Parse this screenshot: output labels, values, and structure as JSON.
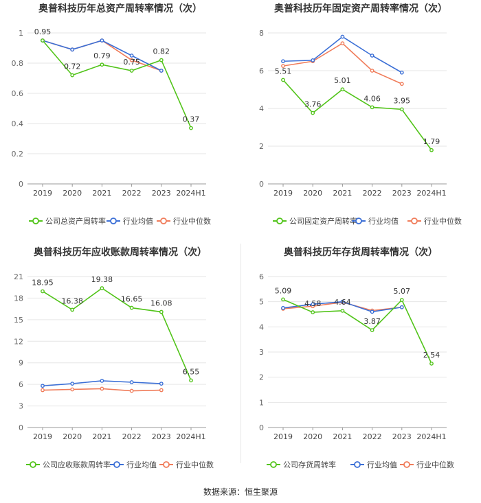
{
  "source": "数据来源：恒生聚源",
  "legend_common": {
    "avg": "行业均值",
    "median": "行业中位数"
  },
  "colors": {
    "company": "#52c41a",
    "avg": "#3b6fd6",
    "median": "#f07c5a",
    "grid": "#e6e6e6",
    "axis": "#999999",
    "text": "#333333"
  },
  "chart_data": [
    {
      "type": "line",
      "title": "奥普科技历年总资产周转率情况（次）",
      "categories": [
        "2019",
        "2020",
        "2021",
        "2022",
        "2023",
        "2024H1"
      ],
      "yticks": [
        "0",
        "0.2",
        "0.4",
        "0.6",
        "0.8",
        "1"
      ],
      "ylim": [
        0,
        1
      ],
      "series": [
        {
          "name": "公司总资产周转率",
          "key": "company",
          "values": [
            0.95,
            0.72,
            0.79,
            0.75,
            0.82,
            0.37
          ],
          "labels": [
            "0.95",
            "0.72",
            "0.79",
            "0.75",
            "0.82",
            "0.37"
          ]
        },
        {
          "name": "行业均值",
          "key": "avg",
          "values": [
            0.95,
            0.89,
            0.95,
            0.85,
            0.75,
            null
          ]
        },
        {
          "name": "行业中位数",
          "key": "median",
          "values": [
            0.95,
            0.89,
            0.95,
            0.82,
            0.75,
            null
          ]
        }
      ]
    },
    {
      "type": "line",
      "title": "奥普科技历年固定资产周转率情况（次）",
      "categories": [
        "2019",
        "2020",
        "2021",
        "2022",
        "2023",
        "2024H1"
      ],
      "yticks": [
        "0",
        "2",
        "4",
        "6",
        "8"
      ],
      "ylim": [
        0,
        8
      ],
      "series": [
        {
          "name": "公司固定资产周转率",
          "key": "company",
          "values": [
            5.51,
            3.76,
            5.01,
            4.06,
            3.95,
            1.79
          ],
          "labels": [
            "5.51",
            "3.76",
            "5.01",
            "4.06",
            "3.95",
            "1.79"
          ]
        },
        {
          "name": "行业均值",
          "key": "avg",
          "values": [
            6.5,
            6.55,
            7.8,
            6.8,
            5.9,
            null
          ]
        },
        {
          "name": "行业中位数",
          "key": "median",
          "values": [
            6.25,
            6.5,
            7.45,
            6.0,
            5.3,
            null
          ]
        }
      ]
    },
    {
      "type": "line",
      "title": "奥普科技历年应收账款周转率情况（次）",
      "categories": [
        "2019",
        "2020",
        "2021",
        "2022",
        "2023",
        "2024H1"
      ],
      "yticks": [
        "0",
        "3",
        "6",
        "9",
        "12",
        "15",
        "18",
        "21"
      ],
      "ylim": [
        0,
        21
      ],
      "series": [
        {
          "name": "公司应收账款周转率",
          "key": "company",
          "values": [
            18.95,
            16.38,
            19.38,
            16.65,
            16.08,
            6.55
          ],
          "labels": [
            "18.95",
            "16.38",
            "19.38",
            "16.65",
            "16.08",
            "6.55"
          ]
        },
        {
          "name": "行业均值",
          "key": "avg",
          "values": [
            5.8,
            6.1,
            6.5,
            6.3,
            6.1,
            null
          ]
        },
        {
          "name": "行业中位数",
          "key": "median",
          "values": [
            5.2,
            5.3,
            5.4,
            5.1,
            5.2,
            null
          ]
        }
      ]
    },
    {
      "type": "line",
      "title": "奥普科技历年存货周转率情况（次）",
      "categories": [
        "2019",
        "2020",
        "2021",
        "2022",
        "2023",
        "2024H1"
      ],
      "yticks": [
        "0",
        "1",
        "2",
        "3",
        "4",
        "5",
        "6"
      ],
      "ylim": [
        0,
        6
      ],
      "series": [
        {
          "name": "公司存货周转率",
          "key": "company",
          "values": [
            5.09,
            4.58,
            4.64,
            3.87,
            5.07,
            2.54
          ],
          "labels": [
            "5.09",
            "4.58",
            "4.64",
            "3.87",
            "5.07",
            "2.54"
          ]
        },
        {
          "name": "行业均值",
          "key": "avg",
          "values": [
            4.75,
            4.9,
            5.0,
            4.6,
            4.78,
            null
          ]
        },
        {
          "name": "行业中位数",
          "key": "median",
          "values": [
            4.72,
            4.82,
            4.98,
            4.65,
            4.78,
            null
          ]
        }
      ]
    }
  ]
}
